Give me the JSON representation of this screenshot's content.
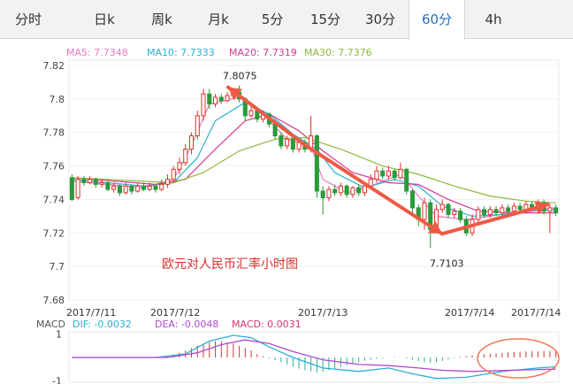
{
  "tabs": [
    {
      "label": "分时",
      "active": false
    },
    {
      "label": "日k",
      "active": false
    },
    {
      "label": "周k",
      "active": false
    },
    {
      "label": "月k",
      "active": false
    },
    {
      "label": "5分",
      "active": false
    },
    {
      "label": "15分",
      "active": false
    },
    {
      "label": "30分",
      "active": false
    },
    {
      "label": "60分",
      "active": true
    },
    {
      "label": "4h",
      "active": false
    }
  ],
  "ma_legend": [
    {
      "label": "MA5: 7.7348",
      "color": "#e87bc4"
    },
    {
      "label": "MA10: 7.7333",
      "color": "#2ab0d4"
    },
    {
      "label": "MA20: 7.7319",
      "color": "#d63a8e"
    },
    {
      "label": "MA30: 7.7376",
      "color": "#8fb83a"
    }
  ],
  "chart_data": {
    "type": "candlestick",
    "title": "欧元对人民币汇率小时图",
    "y_ticks": [
      "7.82",
      "7.8",
      "7.78",
      "7.76",
      "7.74",
      "7.72",
      "7.7",
      "7.68"
    ],
    "ylim": [
      7.68,
      7.82
    ],
    "x_ticks": [
      "2017/7/11",
      "2017/7/12",
      "2017/7/13",
      "2017/7/14",
      "2017/7/14"
    ],
    "annotations": [
      {
        "text": "7.8075",
        "value": 7.8075
      },
      {
        "text": "7.7103",
        "value": 7.7103
      }
    ],
    "trend_points": [
      7.807,
      7.7725,
      7.7195,
      7.737
    ],
    "candles": [
      [
        7.753,
        7.74,
        7.755,
        7.739
      ],
      [
        7.741,
        7.752,
        7.754,
        7.74
      ],
      [
        7.752,
        7.75,
        7.754,
        7.748
      ],
      [
        7.75,
        7.752,
        7.754,
        7.749
      ],
      [
        7.752,
        7.749,
        7.753,
        7.747
      ],
      [
        7.749,
        7.75,
        7.752,
        7.747
      ],
      [
        7.75,
        7.746,
        7.751,
        7.745
      ],
      [
        7.746,
        7.748,
        7.75,
        7.744
      ],
      [
        7.748,
        7.744,
        7.749,
        7.742
      ],
      [
        7.744,
        7.748,
        7.75,
        7.743
      ],
      [
        7.748,
        7.745,
        7.749,
        7.743
      ],
      [
        7.745,
        7.748,
        7.75,
        7.744
      ],
      [
        7.748,
        7.746,
        7.75,
        7.745
      ],
      [
        7.746,
        7.748,
        7.75,
        7.745
      ],
      [
        7.748,
        7.746,
        7.749,
        7.744
      ],
      [
        7.746,
        7.749,
        7.752,
        7.745
      ],
      [
        7.749,
        7.752,
        7.755,
        7.747
      ],
      [
        7.752,
        7.758,
        7.76,
        7.75
      ],
      [
        7.758,
        7.762,
        7.765,
        7.755
      ],
      [
        7.762,
        7.77,
        7.773,
        7.76
      ],
      [
        7.77,
        7.778,
        7.78,
        7.767
      ],
      [
        7.778,
        7.79,
        7.793,
        7.776
      ],
      [
        7.79,
        7.803,
        7.806,
        7.787
      ],
      [
        7.803,
        7.797,
        7.806,
        7.794
      ],
      [
        7.797,
        7.801,
        7.803,
        7.795
      ],
      [
        7.801,
        7.799,
        7.803,
        7.797
      ],
      [
        7.799,
        7.802,
        7.804,
        7.798
      ],
      [
        7.802,
        7.804,
        7.806,
        7.8
      ],
      [
        7.804,
        7.8,
        7.808,
        7.798
      ],
      [
        7.8,
        7.79,
        7.801,
        7.787
      ],
      [
        7.79,
        7.793,
        7.796,
        7.789
      ],
      [
        7.793,
        7.788,
        7.795,
        7.786
      ],
      [
        7.788,
        7.791,
        7.793,
        7.786
      ],
      [
        7.791,
        7.785,
        7.792,
        7.783
      ],
      [
        7.785,
        7.778,
        7.786,
        7.776
      ],
      [
        7.778,
        7.772,
        7.78,
        7.77
      ],
      [
        7.772,
        7.776,
        7.778,
        7.77
      ],
      [
        7.776,
        7.77,
        7.778,
        7.768
      ],
      [
        7.77,
        7.774,
        7.776,
        7.768
      ],
      [
        7.774,
        7.77,
        7.776,
        7.768
      ],
      [
        7.77,
        7.778,
        7.79,
        7.768
      ],
      [
        7.778,
        7.745,
        7.779,
        7.741
      ],
      [
        7.745,
        7.741,
        7.748,
        7.731
      ],
      [
        7.741,
        7.746,
        7.748,
        7.739
      ],
      [
        7.746,
        7.744,
        7.749,
        7.742
      ],
      [
        7.744,
        7.748,
        7.75,
        7.742
      ],
      [
        7.748,
        7.743,
        7.749,
        7.741
      ],
      [
        7.743,
        7.747,
        7.748,
        7.741
      ],
      [
        7.747,
        7.744,
        7.749,
        7.742
      ],
      [
        7.744,
        7.748,
        7.75,
        7.742
      ],
      [
        7.748,
        7.752,
        7.755,
        7.746
      ],
      [
        7.752,
        7.757,
        7.76,
        7.75
      ],
      [
        7.757,
        7.754,
        7.759,
        7.752
      ],
      [
        7.754,
        7.757,
        7.76,
        7.752
      ],
      [
        7.757,
        7.753,
        7.758,
        7.751
      ],
      [
        7.753,
        7.758,
        7.762,
        7.752
      ],
      [
        7.758,
        7.745,
        7.759,
        7.743
      ],
      [
        7.745,
        7.735,
        7.746,
        7.731
      ],
      [
        7.735,
        7.728,
        7.737,
        7.724
      ],
      [
        7.728,
        7.738,
        7.741,
        7.722
      ],
      [
        7.738,
        7.722,
        7.74,
        7.711
      ],
      [
        7.722,
        7.734,
        7.737,
        7.72
      ],
      [
        7.734,
        7.737,
        7.74,
        7.732
      ],
      [
        7.737,
        7.731,
        7.738,
        7.729
      ],
      [
        7.731,
        7.733,
        7.735,
        7.729
      ],
      [
        7.733,
        7.728,
        7.735,
        7.726
      ],
      [
        7.728,
        7.72,
        7.73,
        7.718
      ],
      [
        7.72,
        7.728,
        7.731,
        7.718
      ],
      [
        7.728,
        7.734,
        7.736,
        7.726
      ],
      [
        7.734,
        7.731,
        7.736,
        7.729
      ],
      [
        7.731,
        7.734,
        7.736,
        7.729
      ],
      [
        7.734,
        7.732,
        7.736,
        7.73
      ],
      [
        7.732,
        7.735,
        7.737,
        7.73
      ],
      [
        7.735,
        7.733,
        7.737,
        7.731
      ],
      [
        7.733,
        7.736,
        7.738,
        7.731
      ],
      [
        7.736,
        7.734,
        7.738,
        7.732
      ],
      [
        7.734,
        7.737,
        7.739,
        7.732
      ],
      [
        7.737,
        7.735,
        7.739,
        7.734
      ],
      [
        7.735,
        7.738,
        7.74,
        7.733
      ],
      [
        7.738,
        7.733,
        7.74,
        7.731
      ],
      [
        7.733,
        7.735,
        7.737,
        7.72
      ],
      [
        7.735,
        7.732,
        7.737,
        7.73
      ]
    ],
    "ma_lines": {
      "MA5": [
        [
          0,
          7.751
        ],
        [
          12,
          7.747
        ],
        [
          17,
          7.752
        ],
        [
          20,
          7.772
        ],
        [
          23,
          7.797
        ],
        [
          28,
          7.801
        ],
        [
          32,
          7.791
        ],
        [
          36,
          7.776
        ],
        [
          40,
          7.772
        ],
        [
          42,
          7.752
        ],
        [
          46,
          7.744
        ],
        [
          50,
          7.748
        ],
        [
          55,
          7.755
        ],
        [
          58,
          7.742
        ],
        [
          61,
          7.73
        ],
        [
          66,
          7.728
        ],
        [
          70,
          7.73
        ],
        [
          75,
          7.733
        ],
        [
          81,
          7.735
        ]
      ],
      "MA10": [
        [
          0,
          7.752
        ],
        [
          12,
          7.748
        ],
        [
          17,
          7.75
        ],
        [
          21,
          7.765
        ],
        [
          24,
          7.787
        ],
        [
          29,
          7.798
        ],
        [
          33,
          7.791
        ],
        [
          37,
          7.779
        ],
        [
          41,
          7.77
        ],
        [
          44,
          7.756
        ],
        [
          49,
          7.747
        ],
        [
          54,
          7.752
        ],
        [
          58,
          7.748
        ],
        [
          62,
          7.736
        ],
        [
          67,
          7.73
        ],
        [
          72,
          7.731
        ],
        [
          77,
          7.733
        ],
        [
          81,
          7.734
        ]
      ],
      "MA20": [
        [
          0,
          7.753
        ],
        [
          14,
          7.749
        ],
        [
          19,
          7.752
        ],
        [
          24,
          7.77
        ],
        [
          29,
          7.787
        ],
        [
          33,
          7.791
        ],
        [
          38,
          7.781
        ],
        [
          42,
          7.769
        ],
        [
          47,
          7.756
        ],
        [
          53,
          7.75
        ],
        [
          58,
          7.749
        ],
        [
          63,
          7.74
        ],
        [
          68,
          7.733
        ],
        [
          75,
          7.732
        ],
        [
          81,
          7.732
        ]
      ],
      "MA30": [
        [
          0,
          7.753
        ],
        [
          17,
          7.75
        ],
        [
          22,
          7.756
        ],
        [
          28,
          7.769
        ],
        [
          34,
          7.776
        ],
        [
          39,
          7.777
        ],
        [
          45,
          7.77
        ],
        [
          52,
          7.76
        ],
        [
          58,
          7.755
        ],
        [
          64,
          7.748
        ],
        [
          70,
          7.742
        ],
        [
          76,
          7.739
        ],
        [
          81,
          7.738
        ]
      ]
    },
    "macd_legend": [
      {
        "label": "MACD",
        "color": "#555555"
      },
      {
        "label": "DIF: -0.0032",
        "color": "#2ab0d4"
      },
      {
        "label": "DEA: -0.0048",
        "color": "#b04ad0"
      },
      {
        "label": "MACD: 0.0031",
        "color": "#d6336a"
      }
    ],
    "macd_y_ticks": [
      "1",
      "-1"
    ],
    "macd_hist": [
      0,
      0,
      0,
      0,
      0,
      0,
      0,
      0,
      0,
      0,
      0,
      0,
      0,
      0,
      0,
      0,
      0.05,
      0.12,
      0.2,
      0.3,
      0.4,
      0.5,
      0.6,
      0.65,
      0.7,
      0.7,
      0.65,
      0.6,
      0.5,
      0.4,
      0.3,
      0.15,
      0.05,
      -0.05,
      -0.12,
      -0.2,
      -0.3,
      -0.4,
      -0.48,
      -0.55,
      -0.6,
      -0.65,
      -0.62,
      -0.55,
      -0.48,
      -0.4,
      -0.33,
      -0.26,
      -0.2,
      -0.14,
      -0.1,
      -0.06,
      -0.03,
      0,
      0.02,
      0,
      -0.05,
      -0.1,
      -0.16,
      -0.2,
      -0.22,
      -0.2,
      -0.15,
      -0.08,
      -0.02,
      0.03,
      0.06,
      0.09,
      0.12,
      0.14,
      0.16,
      0.18,
      0.2,
      0.22,
      0.23,
      0.25,
      0.26,
      0.27,
      0.27,
      0.28,
      0.28,
      0.28
    ],
    "macd_dif": [
      [
        0,
        0.0
      ],
      [
        14,
        0.0
      ],
      [
        19,
        0.15
      ],
      [
        23,
        0.7
      ],
      [
        27,
        0.95
      ],
      [
        30,
        0.85
      ],
      [
        33,
        0.45
      ],
      [
        37,
        0.0
      ],
      [
        42,
        -0.45
      ],
      [
        48,
        -0.6
      ],
      [
        53,
        -0.45
      ],
      [
        57,
        -0.7
      ],
      [
        61,
        -0.9
      ],
      [
        66,
        -0.85
      ],
      [
        72,
        -0.6
      ],
      [
        78,
        -0.45
      ],
      [
        81,
        -0.4
      ]
    ],
    "macd_dea": [
      [
        0,
        0.0
      ],
      [
        16,
        0.0
      ],
      [
        21,
        0.2
      ],
      [
        25,
        0.55
      ],
      [
        29,
        0.75
      ],
      [
        33,
        0.6
      ],
      [
        37,
        0.25
      ],
      [
        42,
        -0.1
      ],
      [
        48,
        -0.3
      ],
      [
        53,
        -0.35
      ],
      [
        58,
        -0.45
      ],
      [
        62,
        -0.55
      ],
      [
        67,
        -0.6
      ],
      [
        73,
        -0.55
      ],
      [
        81,
        -0.5
      ]
    ]
  }
}
